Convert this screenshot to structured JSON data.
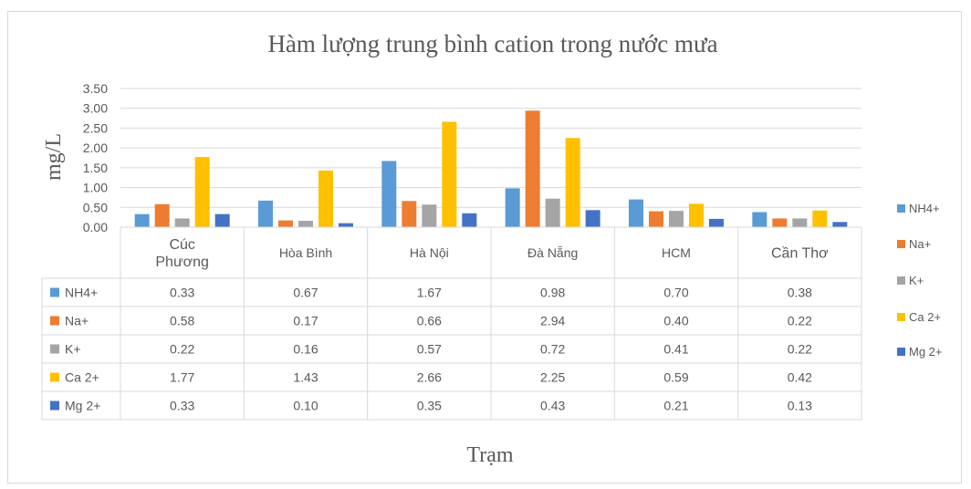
{
  "chart_data": {
    "type": "bar",
    "title": "Hàm lượng trung bình cation trong nước mưa",
    "xlabel": "Trạm",
    "ylabel": "mg/L",
    "ylim": [
      0,
      3.5
    ],
    "yticks": [
      "0.00",
      "0.50",
      "1.00",
      "1.50",
      "2.00",
      "2.50",
      "3.00",
      "3.50"
    ],
    "categories": [
      "Cúc Phương",
      "Hòa Bình",
      "Hà Nội",
      "Đà Nẵng",
      "HCM",
      "Cần Thơ"
    ],
    "category_lines": [
      [
        "Cúc",
        "Phương"
      ],
      [
        "Hòa Bình"
      ],
      [
        "Hà Nội"
      ],
      [
        "Đà Nẵng"
      ],
      [
        "HCM"
      ],
      [
        "Cần Thơ"
      ]
    ],
    "series": [
      {
        "name": "NH4+",
        "color": "#5b9bd5",
        "values": [
          0.33,
          0.67,
          1.67,
          0.98,
          0.7,
          0.38
        ],
        "labels": [
          "0.33",
          "0.67",
          "1.67",
          "0.98",
          "0.70",
          "0.38"
        ]
      },
      {
        "name": "Na+",
        "color": "#ed7d31",
        "values": [
          0.58,
          0.17,
          0.66,
          2.94,
          0.4,
          0.22
        ],
        "labels": [
          "0.58",
          "0.17",
          "0.66",
          "2.94",
          "0.40",
          "0.22"
        ]
      },
      {
        "name": "K+",
        "color": "#a5a5a5",
        "values": [
          0.22,
          0.16,
          0.57,
          0.72,
          0.41,
          0.22
        ],
        "labels": [
          "0.22",
          "0.16",
          "0.57",
          "0.72",
          "0.41",
          "0.22"
        ]
      },
      {
        "name": "Ca 2+",
        "color": "#ffc000",
        "values": [
          1.77,
          1.43,
          2.66,
          2.25,
          0.59,
          0.42
        ],
        "labels": [
          "1.77",
          "1.43",
          "2.66",
          "2.25",
          "0.59",
          "0.42"
        ]
      },
      {
        "name": "Mg 2+",
        "color": "#4472c4",
        "values": [
          0.33,
          0.1,
          0.35,
          0.43,
          0.21,
          0.13
        ],
        "labels": [
          "0.33",
          "0.10",
          "0.35",
          "0.43",
          "0.21",
          "0.13"
        ]
      }
    ],
    "grid": true,
    "legend": "right",
    "data_table": true
  }
}
